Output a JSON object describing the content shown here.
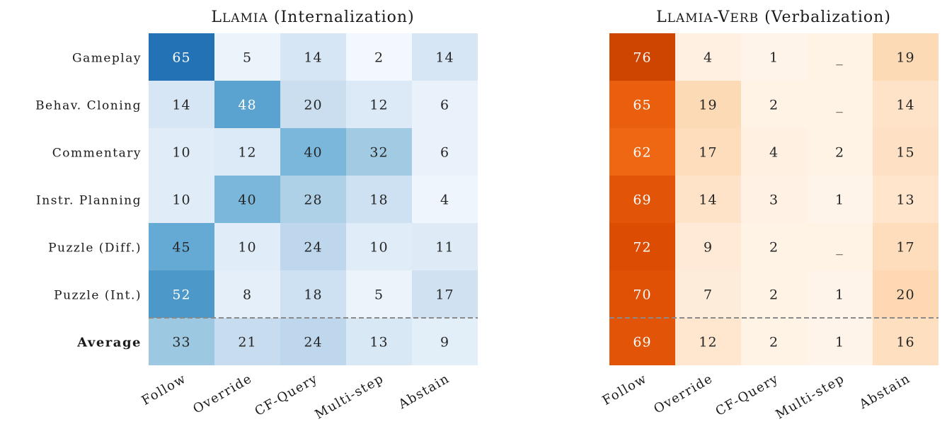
{
  "chart_data": [
    {
      "type": "heatmap",
      "title": "Llamia (Internalization)",
      "colormap": "Blues",
      "rows": [
        "Gameplay",
        "Behav. Cloning",
        "Commentary",
        "Instr. Planning",
        "Puzzle (Diff.)",
        "Puzzle (Int.)",
        "Average"
      ],
      "columns": [
        "Follow",
        "Override",
        "CF-Query",
        "Multi-step",
        "Abstain"
      ],
      "values": [
        [
          65,
          5,
          14,
          2,
          14
        ],
        [
          14,
          48,
          20,
          12,
          6
        ],
        [
          10,
          12,
          40,
          32,
          6
        ],
        [
          10,
          40,
          28,
          18,
          4
        ],
        [
          45,
          10,
          24,
          10,
          11
        ],
        [
          52,
          8,
          18,
          5,
          17
        ],
        [
          33,
          21,
          24,
          13,
          9
        ]
      ],
      "cell_labels": [
        [
          "65",
          "5",
          "14",
          "2",
          "14"
        ],
        [
          "14",
          "48",
          "20",
          "12",
          "6"
        ],
        [
          "10",
          "12",
          "40",
          "32",
          "6"
        ],
        [
          "10",
          "40",
          "28",
          "18",
          "4"
        ],
        [
          "45",
          "10",
          "24",
          "10",
          "11"
        ],
        [
          "52",
          "8",
          "18",
          "5",
          "17"
        ],
        [
          "33",
          "21",
          "24",
          "13",
          "9"
        ]
      ],
      "separator_before_row": "Average"
    },
    {
      "type": "heatmap",
      "title": "Llamia-Verb (Verbalization)",
      "colormap": "Oranges",
      "rows": [
        "Gameplay",
        "Behav. Cloning",
        "Commentary",
        "Instr. Planning",
        "Puzzle (Diff.)",
        "Puzzle (Int.)",
        "Average"
      ],
      "columns": [
        "Follow",
        "Override",
        "CF-Query",
        "Multi-step",
        "Abstain"
      ],
      "values": [
        [
          76,
          4,
          1,
          null,
          19
        ],
        [
          65,
          19,
          2,
          null,
          14
        ],
        [
          62,
          17,
          4,
          2,
          15
        ],
        [
          69,
          14,
          3,
          1,
          13
        ],
        [
          72,
          9,
          2,
          null,
          17
        ],
        [
          70,
          7,
          2,
          1,
          20
        ],
        [
          69,
          12,
          2,
          1,
          16
        ]
      ],
      "cell_labels": [
        [
          "76",
          "4",
          "1",
          "_",
          "19"
        ],
        [
          "65",
          "19",
          "2",
          "_",
          "14"
        ],
        [
          "62",
          "17",
          "4",
          "2",
          "15"
        ],
        [
          "69",
          "14",
          "3",
          "1",
          "13"
        ],
        [
          "72",
          "9",
          "2",
          "_",
          "17"
        ],
        [
          "70",
          "7",
          "2",
          "1",
          "20"
        ],
        [
          "69",
          "12",
          "2",
          "1",
          "16"
        ]
      ],
      "separator_before_row": "Average"
    }
  ]
}
